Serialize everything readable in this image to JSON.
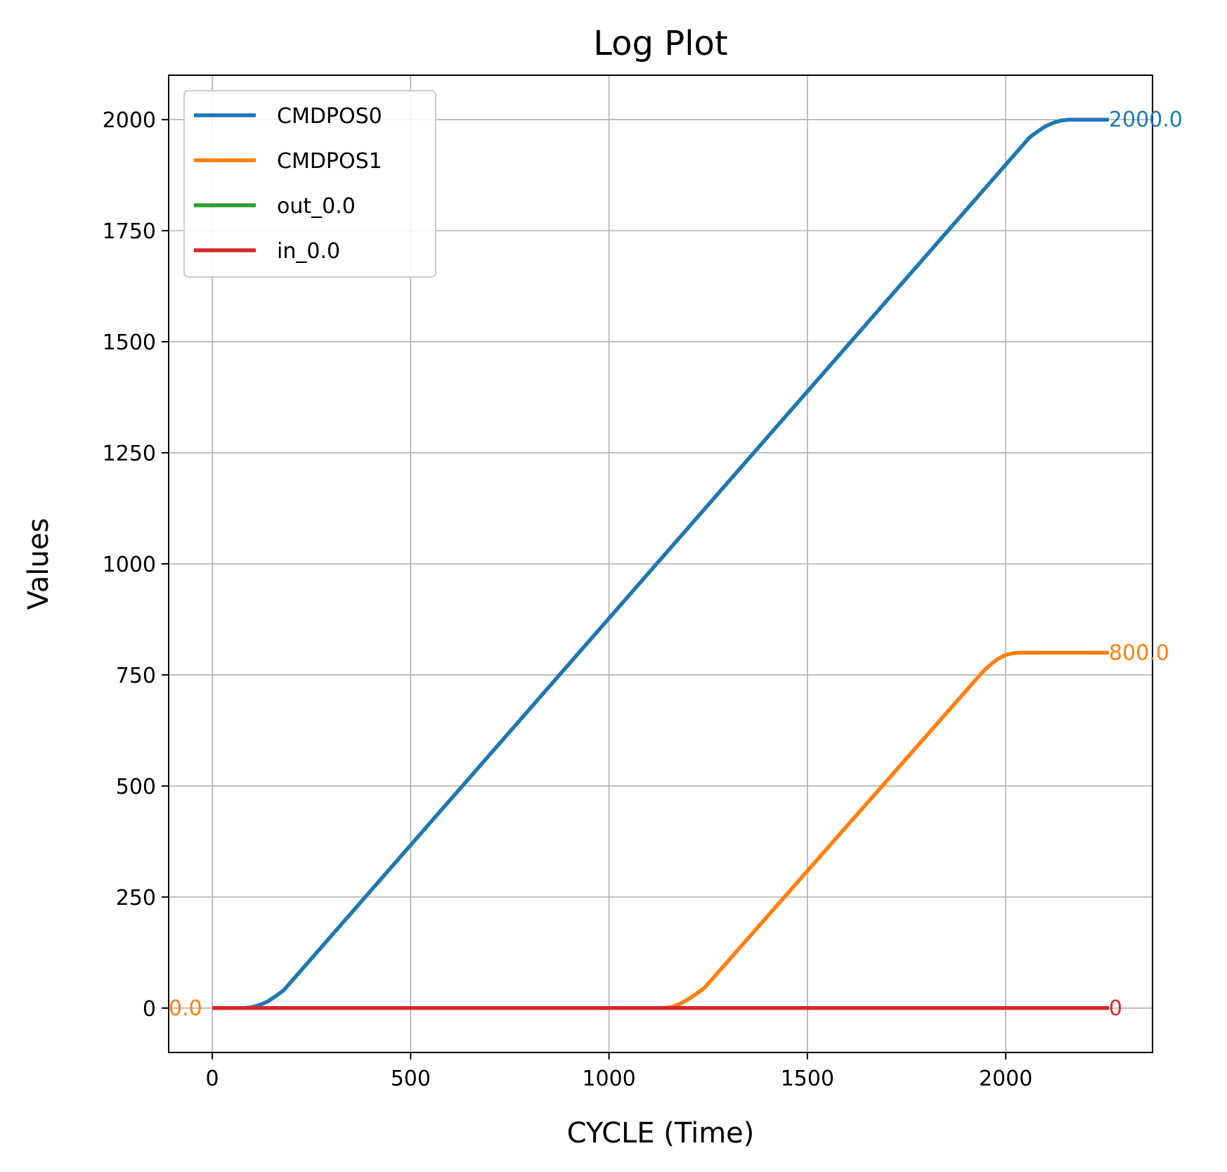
{
  "chart_data": {
    "type": "line",
    "title": "Log Plot",
    "xlabel": "CYCLE (Time)",
    "ylabel": "Values",
    "xlim": [
      -110,
      2370
    ],
    "ylim": [
      -100,
      2100
    ],
    "xticks": [
      0,
      500,
      1000,
      1500,
      2000
    ],
    "yticks": [
      0,
      250,
      500,
      750,
      1000,
      1250,
      1500,
      1750,
      2000
    ],
    "xtick_labels": [
      "0",
      "500",
      "1000",
      "1500",
      "2000"
    ],
    "ytick_labels": [
      "0",
      "250",
      "500",
      "750",
      "1000",
      "1250",
      "1500",
      "1750",
      "2000"
    ],
    "grid": true,
    "legend_position": "upper-left",
    "series": [
      {
        "name": "CMDPOS0",
        "color": "#1f77b4",
        "x": [
          0,
          80,
          100,
          120,
          140,
          160,
          180,
          2060,
          2080,
          2100,
          2120,
          2140,
          2160,
          2180,
          2260
        ],
        "y": [
          0,
          0,
          2,
          7,
          15,
          27,
          40,
          1960,
          1973,
          1985,
          1993,
          1998,
          2000,
          2000,
          2000
        ]
      },
      {
        "name": "CMDPOS1",
        "color": "#ff7f0e",
        "x": [
          0,
          1140,
          1160,
          1180,
          1200,
          1220,
          1240,
          1940,
          1960,
          1980,
          2000,
          2020,
          2040,
          2260
        ],
        "y": [
          0,
          0,
          3,
          10,
          20,
          32,
          45,
          755,
          772,
          786,
          795,
          799,
          800,
          800
        ]
      },
      {
        "name": "out_0.0",
        "color": "#2ca02c",
        "x": [
          0,
          2260
        ],
        "y": [
          0,
          0
        ]
      },
      {
        "name": "in_0.0",
        "color": "#d62728",
        "x": [
          0,
          2260
        ],
        "y": [
          0,
          0
        ]
      }
    ],
    "annotations": [
      {
        "text": "2000.0",
        "x": 2260,
        "y": 2000,
        "color": "#1f77b4"
      },
      {
        "text": "800.0",
        "x": 2260,
        "y": 800,
        "color": "#ff7f0e"
      },
      {
        "text": "0.0",
        "x": -110,
        "y": 0,
        "color": "#ff7f0e"
      },
      {
        "text": "0",
        "x": 2260,
        "y": 0,
        "color": "#d62728"
      }
    ]
  }
}
